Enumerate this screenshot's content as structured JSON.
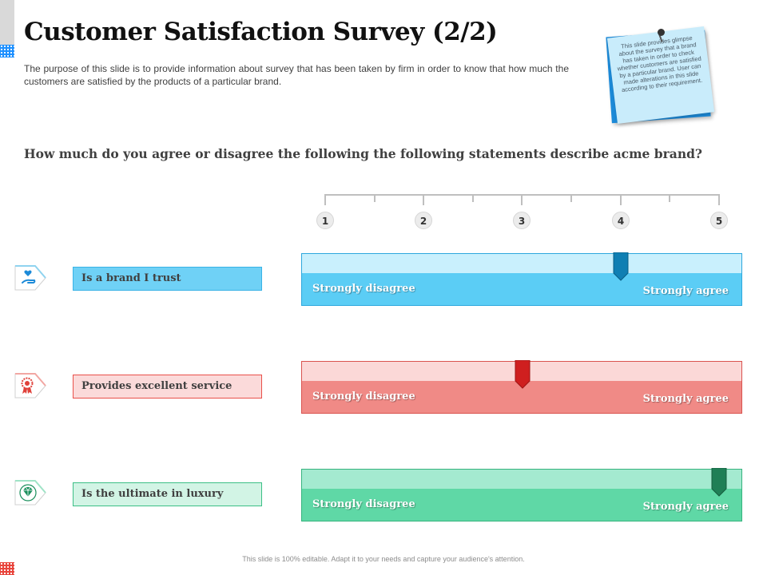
{
  "title": "Customer Satisfaction Survey (2/2)",
  "description": "The purpose of this slide is to provide information about survey that has been taken by firm in order to know that how much the customers are satisfied by the products of a particular brand.",
  "note": "This slide provides glimpse about the survey that a brand has taken in order to check whether customers are satisfied by a particular brand. User can made alterations in this slide according to their requirement.",
  "question": "How much do you agree or disagree the following the following statements describe acme brand?",
  "scale": {
    "labels": [
      "1",
      "2",
      "3",
      "4",
      "5"
    ]
  },
  "statements": [
    {
      "label": "Is a brand I trust",
      "icon": "hand-heart-icon",
      "rating": 4,
      "left_text": "Strongly disagree",
      "right_text": "Strongly agree",
      "color": "#5bcdf5"
    },
    {
      "label": "Provides excellent service",
      "icon": "award-ribbon-icon",
      "rating": 3,
      "left_text": "Strongly disagree",
      "right_text": "Strongly agree",
      "color": "#f08a86"
    },
    {
      "label": "Is the ultimate in luxury",
      "icon": "diamond-icon",
      "rating": 5,
      "left_text": "Strongly disagree",
      "right_text": "Strongly agree",
      "color": "#5fd8a6"
    }
  ],
  "footer": "This slide is 100% editable. Adapt it to your needs and capture your audience's attention."
}
